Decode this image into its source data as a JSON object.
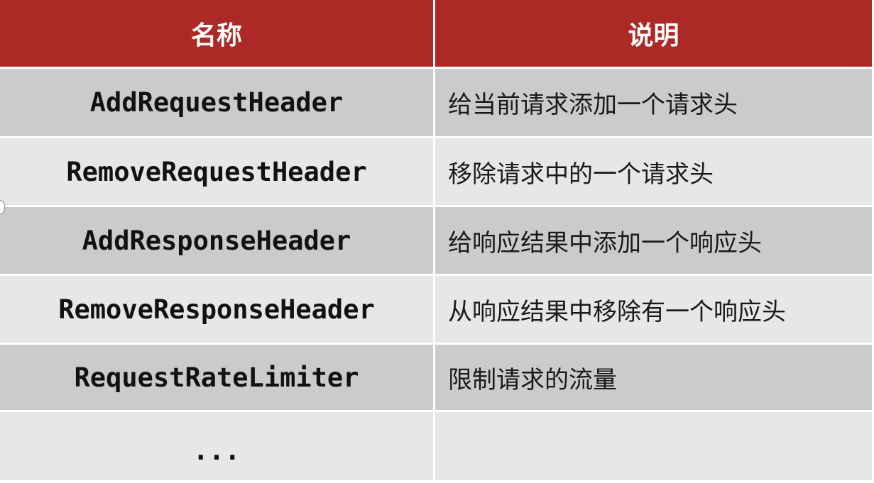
{
  "table": {
    "header": {
      "name": "名称",
      "desc": "说明"
    },
    "rows": [
      {
        "name": "AddRequestHeader",
        "desc": "给当前请求添加一个请求头"
      },
      {
        "name": "RemoveRequestHeader",
        "desc": "移除请求中的一个请求头"
      },
      {
        "name": "AddResponseHeader",
        "desc": "给响应结果中添加一个响应头"
      },
      {
        "name": "RemoveResponseHeader",
        "desc": "从响应结果中移除有一个响应头"
      },
      {
        "name": "RequestRateLimiter",
        "desc": "限制请求的流量"
      },
      {
        "name": "...",
        "desc": ""
      }
    ]
  },
  "colors": {
    "header_bg": "#ad2926",
    "row_dark": "#cbcbcb",
    "row_light": "#e7e7e7"
  }
}
